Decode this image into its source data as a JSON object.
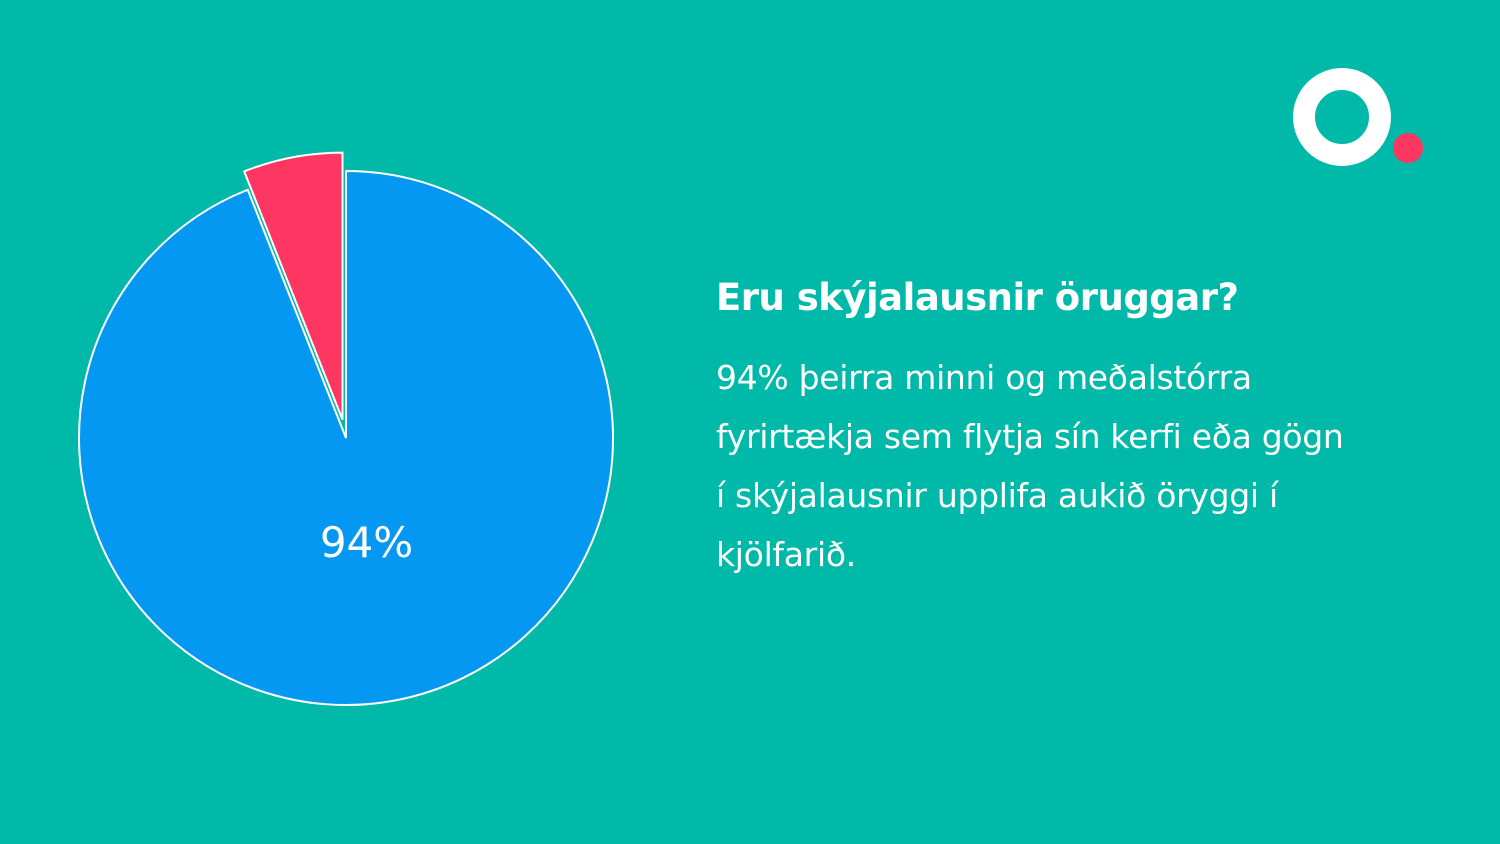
{
  "chart_data": {
    "type": "pie",
    "title": "Eru skýjalausnir öruggar?",
    "description": "94% þeirra minni og meðalstórra fyrirtækja sem flytja sín kerfi eða gögn í skýjalausnir upplifa aukið öryggi í kjölfarið.",
    "values": [
      94,
      6
    ],
    "value_labels": [
      "94%",
      null
    ],
    "colors": [
      "#0598f2",
      "#fd3662"
    ],
    "explode": [
      0,
      0.07
    ],
    "start_angle": 0,
    "direction": "clockwise"
  }
}
